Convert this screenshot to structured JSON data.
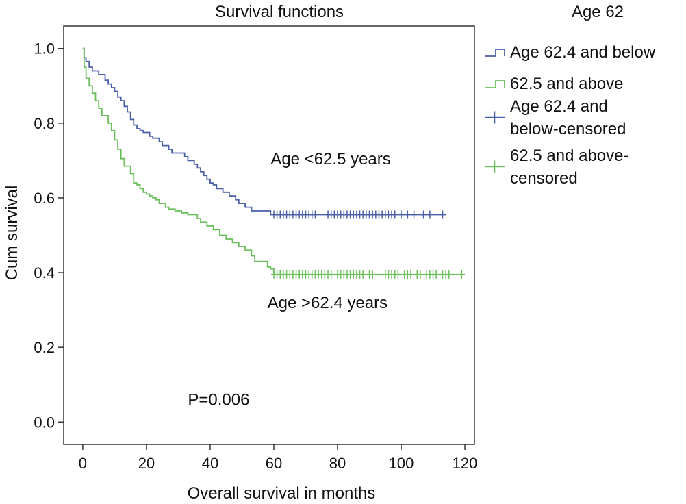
{
  "chart_data": {
    "type": "line",
    "step": true,
    "title": "Survival functions",
    "xlabel": "Overall survival in months",
    "ylabel": "Cum survival",
    "xlim": [
      -6,
      123
    ],
    "ylim": [
      -0.06,
      1.06
    ],
    "xticks": [
      0,
      20,
      40,
      60,
      80,
      100,
      120
    ],
    "yticks": [
      0.0,
      0.2,
      0.4,
      0.6,
      0.8,
      1.0
    ],
    "xtick_labels": [
      "0",
      "20",
      "40",
      "60",
      "80",
      "100",
      "120"
    ],
    "ytick_labels": [
      "0.0",
      "0.2",
      "0.4",
      "0.6",
      "0.8",
      "1.0"
    ],
    "grid": false,
    "legend": {
      "title": "Age 62",
      "placement": "right",
      "entries": [
        {
          "label": [
            "Age 62.4 and below"
          ],
          "marker": "step",
          "color": "#4a5fa8"
        },
        {
          "label": [
            "62.5 and above"
          ],
          "marker": "step",
          "color": "#6abf5a"
        },
        {
          "label": [
            "Age 62.4 and",
            "below-censored"
          ],
          "marker": "plus",
          "color": "#4a5fa8"
        },
        {
          "label": [
            "62.5 and above-",
            "censored"
          ],
          "marker": "plus",
          "color": "#6abf5a"
        }
      ]
    },
    "series": [
      {
        "name": "Age 62.4 and below",
        "color": "#4a5fa8",
        "x": [
          0,
          0.4,
          1,
          2,
          3,
          5,
          7,
          8,
          9,
          10,
          11,
          12,
          13,
          14,
          15,
          16,
          17,
          18,
          19,
          21,
          22,
          24,
          25,
          27,
          28,
          32,
          33,
          35,
          36,
          37,
          38,
          39,
          40,
          41,
          42,
          44,
          46,
          48,
          49,
          51,
          53,
          55,
          58,
          59,
          60,
          114
        ],
        "y": [
          1.0,
          0.975,
          0.965,
          0.95,
          0.94,
          0.93,
          0.915,
          0.905,
          0.895,
          0.885,
          0.87,
          0.86,
          0.845,
          0.83,
          0.81,
          0.795,
          0.785,
          0.78,
          0.775,
          0.765,
          0.76,
          0.75,
          0.74,
          0.73,
          0.72,
          0.71,
          0.7,
          0.69,
          0.68,
          0.67,
          0.66,
          0.65,
          0.64,
          0.635,
          0.625,
          0.615,
          0.605,
          0.595,
          0.585,
          0.575,
          0.565,
          0.565,
          0.565,
          0.555,
          0.555,
          0.555
        ],
        "censored_x": [
          60,
          61,
          62,
          63,
          64,
          65,
          66,
          67,
          68,
          69,
          70,
          71,
          72,
          73,
          77,
          78,
          79,
          80,
          81,
          82,
          83,
          84,
          85,
          86,
          87,
          88,
          89,
          90,
          91,
          92,
          93,
          94,
          95,
          96,
          97,
          98,
          100,
          102,
          104,
          107,
          109,
          113
        ],
        "censored_y": 0.555
      },
      {
        "name": "62.5 and above",
        "color": "#6abf5a",
        "x": [
          0,
          0.4,
          1,
          2,
          3,
          4,
          5,
          6,
          8,
          9,
          10,
          11,
          12,
          13,
          15,
          16,
          17,
          18,
          19,
          20,
          21,
          22,
          23,
          24,
          26,
          27,
          29,
          31,
          33,
          36,
          37,
          39,
          41,
          43,
          45,
          47,
          49,
          51,
          53,
          54,
          58,
          59,
          60,
          120
        ],
        "y": [
          1.0,
          0.95,
          0.92,
          0.9,
          0.88,
          0.86,
          0.84,
          0.82,
          0.8,
          0.78,
          0.755,
          0.73,
          0.705,
          0.685,
          0.665,
          0.64,
          0.635,
          0.625,
          0.615,
          0.61,
          0.605,
          0.6,
          0.595,
          0.585,
          0.575,
          0.57,
          0.565,
          0.56,
          0.555,
          0.545,
          0.535,
          0.525,
          0.515,
          0.5,
          0.49,
          0.48,
          0.47,
          0.46,
          0.445,
          0.43,
          0.415,
          0.41,
          0.395,
          0.395
        ],
        "censored_x": [
          60,
          61,
          62,
          63,
          64,
          65,
          66,
          67,
          68,
          69,
          70,
          71,
          72,
          73,
          74,
          75,
          76,
          77,
          78,
          80,
          81,
          82,
          83,
          84,
          85,
          86,
          87,
          88,
          90,
          91,
          95,
          96,
          97,
          98,
          99,
          101,
          102,
          103,
          105,
          106,
          108,
          109,
          110,
          111,
          113,
          114,
          115,
          119
        ],
        "censored_y": 0.395
      }
    ],
    "annotations": [
      {
        "id": "age-below",
        "text": "Age <62.5 years",
        "x": 59,
        "y": 0.69
      },
      {
        "id": "age-above",
        "text": "Age >62.4 years",
        "x": 58,
        "y": 0.305
      },
      {
        "id": "p-value",
        "text": "P=0.006",
        "x": 33,
        "y": 0.045
      }
    ]
  }
}
